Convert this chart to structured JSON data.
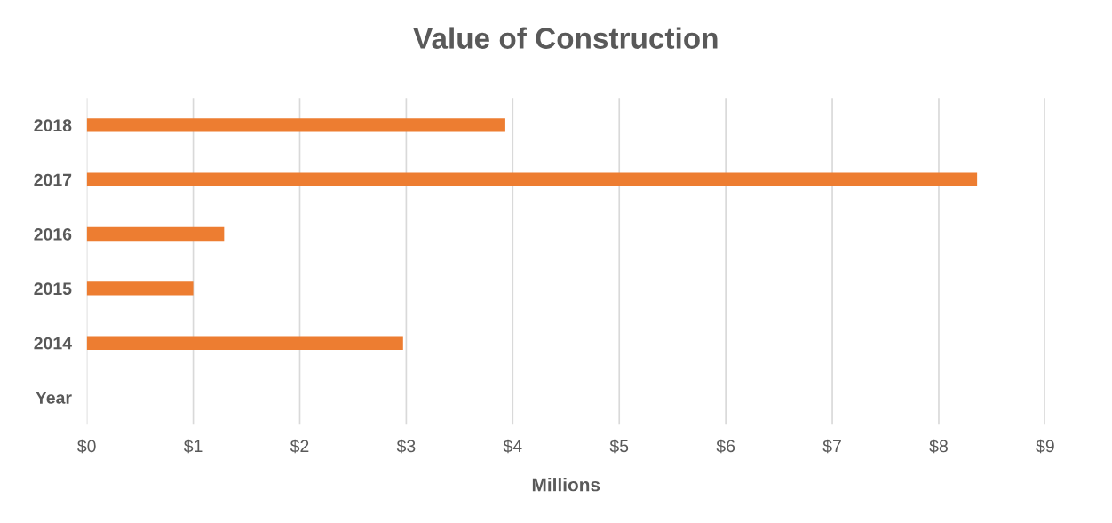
{
  "chart_data": {
    "type": "bar",
    "orientation": "horizontal",
    "title": "Value of Construction",
    "xlabel": "Millions",
    "categories": [
      "2018",
      "2017",
      "2016",
      "2015",
      "2014",
      "Year"
    ],
    "values": [
      3.93,
      8.36,
      1.29,
      1.0,
      2.97,
      null
    ],
    "color": "#ed7d31",
    "xlim": [
      0,
      9
    ],
    "xticks": [
      {
        "value": 0,
        "label": "$0"
      },
      {
        "value": 1,
        "label": "$1"
      },
      {
        "value": 2,
        "label": "$2"
      },
      {
        "value": 3,
        "label": "$3"
      },
      {
        "value": 4,
        "label": "$4"
      },
      {
        "value": 5,
        "label": "$5"
      },
      {
        "value": 6,
        "label": "$6"
      },
      {
        "value": 7,
        "label": "$7"
      },
      {
        "value": 8,
        "label": "$8"
      },
      {
        "value": 9,
        "label": "$9"
      }
    ],
    "grid": "x",
    "legend": false
  }
}
